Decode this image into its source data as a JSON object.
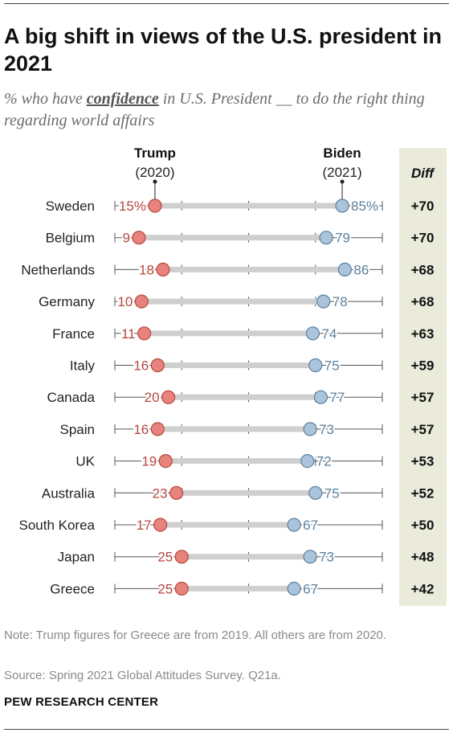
{
  "title": "A big shift in views of the U.S. president in 2021",
  "subtitle": {
    "prefix": "% who have ",
    "keyword": "confidence",
    "suffix": " in U.S. President __ to do the right thing regarding world affairs"
  },
  "note": "Note: Trump figures for Greece are from 2019. All others are from 2020.",
  "source": "Source: Spring 2021 Global Attitudes Survey. Q21a.",
  "brand": "PEW RESEARCH CENTER",
  "colors": {
    "trump": "#e8827d",
    "trump_text": "#b5473f",
    "biden": "#a9c4db",
    "biden_text": "#5b7f9c",
    "bar": "#cfcfcf",
    "diff_panel": "#ebebdc"
  },
  "chart_data": {
    "type": "dot-range",
    "xlim": [
      0,
      100
    ],
    "series": [
      {
        "name": "Trump",
        "year_label": "(2020)"
      },
      {
        "name": "Biden",
        "year_label": "(2021)"
      }
    ],
    "diff_header": "Diff",
    "rows": [
      {
        "country": "Sweden",
        "trump": 15,
        "biden": 85,
        "trump_label": "15%",
        "biden_label": "85%",
        "diff": "+70"
      },
      {
        "country": "Belgium",
        "trump": 9,
        "biden": 79,
        "trump_label": "9",
        "biden_label": "79",
        "diff": "+70"
      },
      {
        "country": "Netherlands",
        "trump": 18,
        "biden": 86,
        "trump_label": "18",
        "biden_label": "86",
        "diff": "+68"
      },
      {
        "country": "Germany",
        "trump": 10,
        "biden": 78,
        "trump_label": "10",
        "biden_label": "78",
        "diff": "+68"
      },
      {
        "country": "France",
        "trump": 11,
        "biden": 74,
        "trump_label": "11",
        "biden_label": "74",
        "diff": "+63"
      },
      {
        "country": "Italy",
        "trump": 16,
        "biden": 75,
        "trump_label": "16",
        "biden_label": "75",
        "diff": "+59"
      },
      {
        "country": "Canada",
        "trump": 20,
        "biden": 77,
        "trump_label": "20",
        "biden_label": "77",
        "diff": "+57"
      },
      {
        "country": "Spain",
        "trump": 16,
        "biden": 73,
        "trump_label": "16",
        "biden_label": "73",
        "diff": "+57"
      },
      {
        "country": "UK",
        "trump": 19,
        "biden": 72,
        "trump_label": "19",
        "biden_label": "72",
        "diff": "+53"
      },
      {
        "country": "Australia",
        "trump": 23,
        "biden": 75,
        "trump_label": "23",
        "biden_label": "75",
        "diff": "+52"
      },
      {
        "country": "South Korea",
        "trump": 17,
        "biden": 67,
        "trump_label": "17",
        "biden_label": "67",
        "diff": "+50"
      },
      {
        "country": "Japan",
        "trump": 25,
        "biden": 73,
        "trump_label": "25",
        "biden_label": "73",
        "diff": "+48"
      },
      {
        "country": "Greece",
        "trump": 25,
        "biden": 67,
        "trump_label": "25",
        "biden_label": "67",
        "diff": "+42"
      }
    ]
  }
}
